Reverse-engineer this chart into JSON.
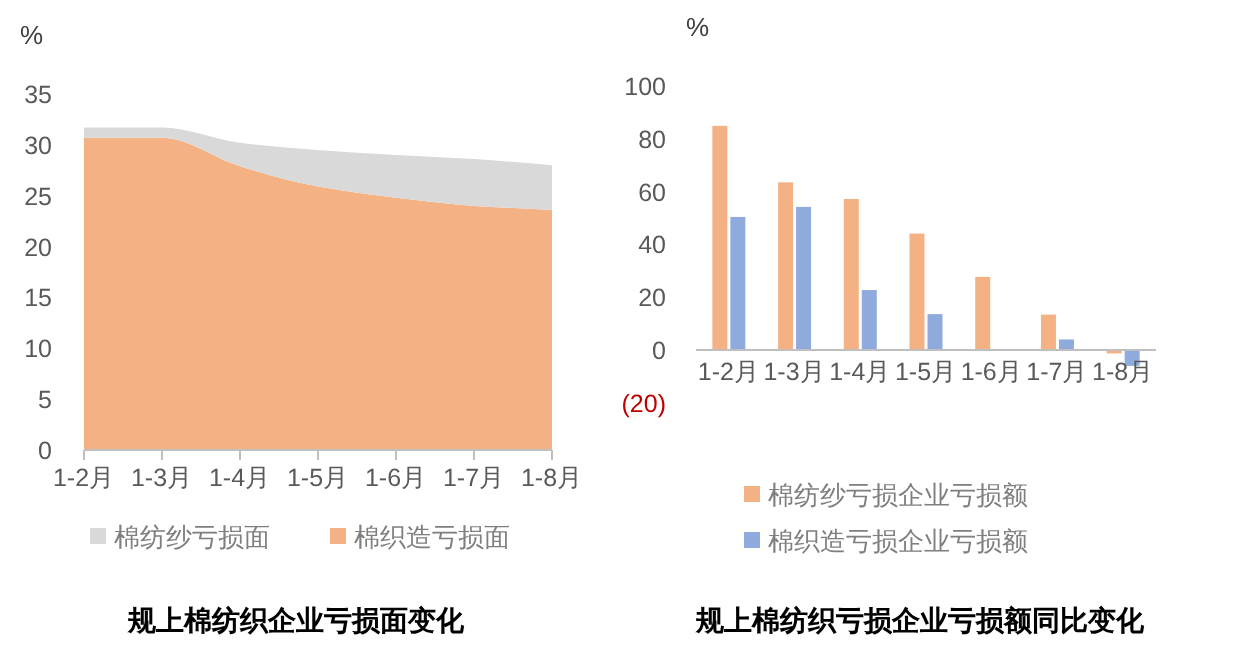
{
  "chart_data": [
    {
      "type": "area",
      "title": "规上棉纺织企业亏损面变化",
      "ylabel": "%",
      "categories": [
        "1-2月",
        "1-3月",
        "1-4月",
        "1-5月",
        "1-6月",
        "1-7月",
        "1-8月"
      ],
      "series": [
        {
          "name": "棉纺纱亏损面",
          "color": "#d9d9d9",
          "values": [
            31.7,
            31.7,
            30.2,
            29.5,
            29.0,
            28.6,
            28.0
          ]
        },
        {
          "name": "棉织造亏损面",
          "color": "#f4b183",
          "values": [
            30.7,
            30.7,
            27.9,
            25.9,
            24.8,
            24.0,
            23.6
          ]
        }
      ],
      "ylim": [
        0,
        35
      ],
      "yticks": [
        0,
        5,
        10,
        15,
        20,
        25,
        30,
        35
      ],
      "legend": "bottom",
      "grid": false
    },
    {
      "type": "bar",
      "title": "规上棉纺织亏损企业亏损额同比变化",
      "ylabel": "%",
      "categories": [
        "1-2月",
        "1-3月",
        "1-4月",
        "1-5月",
        "1-6月",
        "1-7月",
        "1-8月"
      ],
      "series": [
        {
          "name": "棉纺纱亏损企业亏损额",
          "color": "#f4b183",
          "values": [
            84.9,
            63.5,
            57.2,
            44.1,
            27.7,
            13.4,
            -1.3
          ]
        },
        {
          "name": "棉织造亏损企业亏损额",
          "color": "#8faadc",
          "values": [
            50.4,
            54.2,
            22.7,
            13.6,
            null,
            4.0,
            -6.0
          ]
        }
      ],
      "ylim": [
        -20,
        100
      ],
      "yticks": [
        {
          "value": -20,
          "label": "(20)"
        },
        0,
        20,
        40,
        60,
        80,
        100
      ],
      "legend": "bottom",
      "grid": false
    }
  ]
}
